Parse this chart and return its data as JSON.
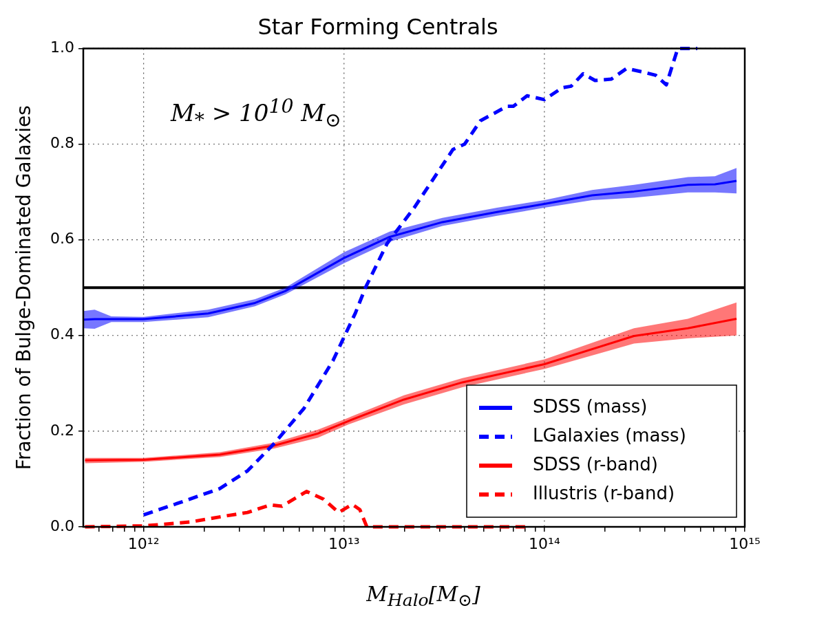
{
  "chart_data": {
    "type": "line",
    "title": "Star Forming Centrals",
    "xlabel": "M$_{Halo}$[M$_{⊙}$]",
    "ylabel": "Fraction of Bulge-Dominated Galaxies",
    "annotations": [
      "M$_{*}$ > 10$^{10}$ M$_{⊙}$"
    ],
    "log": "x",
    "xlim": [
      500000000000.0,
      1000000000000000.0
    ],
    "ylim": [
      0,
      1
    ],
    "xticks": [
      {
        "value": 600000000000.0,
        "label": null
      },
      {
        "value": 700000000000.0,
        "label": null
      },
      {
        "value": 800000000000.0,
        "label": null
      },
      {
        "value": 900000000000.0,
        "label": null
      },
      {
        "value": 1000000000000.0,
        "label": "10¹²"
      },
      {
        "value": 2000000000000.0,
        "label": null
      },
      {
        "value": 3000000000000.0,
        "label": null
      },
      {
        "value": 4000000000000.0,
        "label": null
      },
      {
        "value": 5000000000000.0,
        "label": null
      },
      {
        "value": 6000000000000.0,
        "label": null
      },
      {
        "value": 7000000000000.0,
        "label": null
      },
      {
        "value": 8000000000000.0,
        "label": null
      },
      {
        "value": 9000000000000.0,
        "label": null
      },
      {
        "value": 10000000000000.0,
        "label": "10¹³"
      },
      {
        "value": 20000000000000.0,
        "label": null
      },
      {
        "value": 30000000000000.0,
        "label": null
      },
      {
        "value": 40000000000000.0,
        "label": null
      },
      {
        "value": 50000000000000.0,
        "label": null
      },
      {
        "value": 60000000000000.0,
        "label": null
      },
      {
        "value": 70000000000000.0,
        "label": null
      },
      {
        "value": 80000000000000.0,
        "label": null
      },
      {
        "value": 90000000000000.0,
        "label": null
      },
      {
        "value": 100000000000000.0,
        "label": "10¹⁴"
      },
      {
        "value": 200000000000000.0,
        "label": null
      },
      {
        "value": 300000000000000.0,
        "label": null
      },
      {
        "value": 400000000000000.0,
        "label": null
      },
      {
        "value": 500000000000000.0,
        "label": null
      },
      {
        "value": 600000000000000.0,
        "label": null
      },
      {
        "value": 700000000000000.0,
        "label": null
      },
      {
        "value": 800000000000000.0,
        "label": null
      },
      {
        "value": 900000000000000.0,
        "label": null
      },
      {
        "value": 1000000000000000.0,
        "label": "10¹⁵"
      }
    ],
    "yticks": [
      {
        "value": 0,
        "label": "0.0"
      },
      {
        "value": 0.2,
        "label": "0.2"
      },
      {
        "value": 0.4,
        "label": "0.4"
      },
      {
        "value": 0.6,
        "label": "0.6"
      },
      {
        "value": 0.8,
        "label": "0.8"
      },
      {
        "value": 1,
        "label": "1.0"
      }
    ],
    "grid": true,
    "legend": "bottom right",
    "ref_lines": [
      {
        "axis": "y",
        "value": 0.5,
        "color": "#000000"
      }
    ],
    "series": [
      {
        "name": "SDSS (mass)",
        "color": "#0000ff",
        "line_style": "solid",
        "x": [
          500000000000.0,
          570000000000.0,
          690000000000.0,
          1000000000000.0,
          2100000000000.0,
          3600000000000.0,
          5100000000000.0,
          10000000000000.0,
          16900000000000.0,
          31000000000000.0,
          58000000000000.0,
          100000000000000.0,
          173000000000000.0,
          280000000000000.0,
          520000000000000.0,
          710000000000000.0,
          910000000000000.0
        ],
        "values": [
          0.433,
          0.434,
          0.434,
          0.434,
          0.446,
          0.468,
          0.493,
          0.562,
          0.606,
          0.637,
          0.658,
          0.675,
          0.693,
          0.701,
          0.715,
          0.716,
          0.723
        ],
        "lower": [
          0.415,
          0.414,
          0.428,
          0.428,
          0.438,
          0.461,
          0.486,
          0.551,
          0.596,
          0.629,
          0.65,
          0.667,
          0.683,
          0.688,
          0.699,
          0.699,
          0.697
        ],
        "upper": [
          0.451,
          0.454,
          0.44,
          0.439,
          0.454,
          0.476,
          0.5,
          0.574,
          0.617,
          0.646,
          0.667,
          0.683,
          0.704,
          0.715,
          0.731,
          0.733,
          0.75
        ]
      },
      {
        "name": "LGalaxies (mass)",
        "color": "#0000ff",
        "line_style": "dashed",
        "x": [
          1000000000000.0,
          1500000000000.0,
          2400000000000.0,
          3300000000000.0,
          4500000000000.0,
          6300000000000.0,
          8800000000000.0,
          11400000000000.0,
          12800000000000.0,
          16400000000000.0,
          22400000000000.0,
          35000000000000.0,
          40000000000000.0,
          48000000000000.0,
          56000000000000.0,
          65000000000000.0,
          70000000000000.0,
          82000000000000.0,
          100000000000000.0,
          123000000000000.0,
          136000000000000.0,
          156000000000000.0,
          179000000000000.0,
          216000000000000.0,
          257000000000000.0,
          308000000000000.0,
          359000000000000.0,
          406000000000000.0,
          463000000000000.0,
          580000000000000.0
        ],
        "values": [
          0.025,
          0.05,
          0.08,
          0.117,
          0.175,
          0.247,
          0.347,
          0.447,
          0.5,
          0.592,
          0.667,
          0.789,
          0.8,
          0.849,
          0.864,
          0.879,
          0.879,
          0.901,
          0.893,
          0.918,
          0.921,
          0.947,
          0.933,
          0.936,
          0.958,
          0.951,
          0.944,
          0.924,
          1,
          1
        ]
      },
      {
        "name": "SDSS (r-band)",
        "color": "#ff0000",
        "line_style": "solid",
        "x": [
          510000000000.0,
          1000000000000.0,
          2400000000000.0,
          4500000000000.0,
          7400000000000.0,
          10500000000000.0,
          19900000000000.0,
          39000000000000.0,
          100000000000000.0,
          280000000000000.0,
          520000000000000.0,
          910000000000000.0
        ],
        "values": [
          0.139,
          0.14,
          0.151,
          0.17,
          0.195,
          0.221,
          0.266,
          0.302,
          0.34,
          0.399,
          0.415,
          0.435
        ],
        "lower": [
          0.133,
          0.136,
          0.146,
          0.164,
          0.186,
          0.214,
          0.256,
          0.292,
          0.33,
          0.383,
          0.394,
          0.4
        ],
        "upper": [
          0.144,
          0.144,
          0.156,
          0.176,
          0.203,
          0.228,
          0.275,
          0.311,
          0.35,
          0.415,
          0.435,
          0.469
        ]
      },
      {
        "name": "Illustris (r-band)",
        "color": "#ff0000",
        "line_style": "dashed",
        "x": [
          510000000000.0,
          1000000000000.0,
          1700000000000.0,
          2500000000000.0,
          3300000000000.0,
          4300000000000.0,
          4900000000000.0,
          6500000000000.0,
          7900000000000.0,
          9400000000000.0,
          11000000000000.0,
          12000000000000.0,
          13000000000000.0,
          82000000000000.0
        ],
        "values": [
          0,
          0.002,
          0.01,
          0.022,
          0.03,
          0.046,
          0.043,
          0.074,
          0.058,
          0.03,
          0.047,
          0.036,
          0,
          0
        ]
      }
    ]
  }
}
